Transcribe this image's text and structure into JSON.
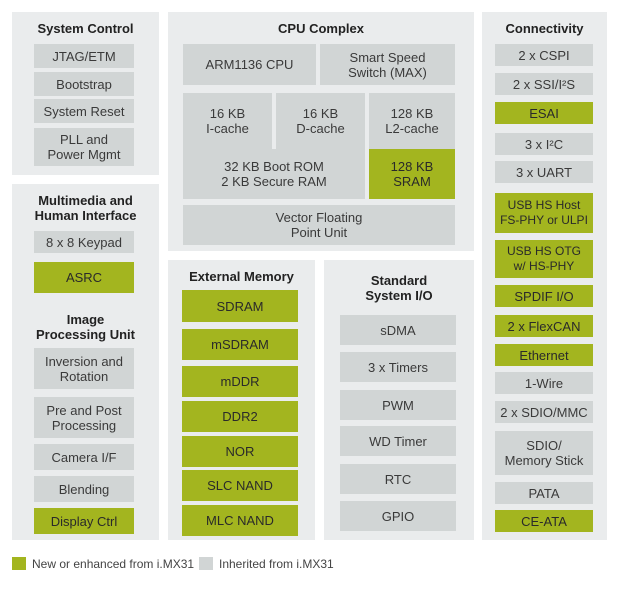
{
  "colors": {
    "new": "#a3b51f",
    "inherited": "#d1d5d5",
    "panel": "#eaeced"
  },
  "system_control": {
    "title": "System Control",
    "blocks": [
      "JTAG/ETM",
      "Bootstrap",
      "System Reset",
      "PLL and\nPower Mgmt"
    ]
  },
  "cpu_complex": {
    "title": "CPU Complex",
    "arm": "ARM1136 CPU",
    "switch": "Smart Speed\nSwitch (MAX)",
    "icache": "16 KB\nI-cache",
    "dcache": "16 KB\nD-cache",
    "l2cache": "128 KB\nL2-cache",
    "bootrom": "32 KB Boot ROM\n2 KB Secure RAM",
    "sram": "128 KB\nSRAM",
    "vfp": "Vector Floating\nPoint Unit"
  },
  "connectivity": {
    "title": "Connectivity",
    "blocks": [
      "2 x CSPI",
      "2 x SSI/I²S",
      "ESAI",
      "3 x I²C",
      "3 x UART",
      "USB HS Host\nFS-PHY or ULPI",
      "USB HS OTG\nw/ HS-PHY",
      "SPDIF I/O",
      "2 x FlexCAN",
      "Ethernet",
      "1-Wire",
      "2 x SDIO/MMC",
      "SDIO/\nMemory Stick",
      "PATA",
      "CE-ATA"
    ]
  },
  "multimedia": {
    "title": "Multimedia and\nHuman Interface",
    "keypad": "8 x 8 Keypad",
    "asrc": "ASRC",
    "ipu_title": "Image\nProcessing Unit",
    "ipu_blocks": [
      "Inversion and\nRotation",
      "Pre and Post\nProcessing",
      "Camera I/F",
      "Blending",
      "Display Ctrl"
    ]
  },
  "external_memory": {
    "title": "External Memory",
    "blocks": [
      "SDRAM",
      "mSDRAM",
      "mDDR",
      "DDR2",
      "NOR",
      "SLC NAND",
      "MLC NAND"
    ]
  },
  "standard_io": {
    "title": "Standard\nSystem I/O",
    "blocks": [
      "sDMA",
      "3 x Timers",
      "PWM",
      "WD Timer",
      "RTC",
      "GPIO"
    ]
  },
  "legend": {
    "new_label": "New or enhanced from i.MX31",
    "inherited_label": "Inherited from i.MX31"
  }
}
